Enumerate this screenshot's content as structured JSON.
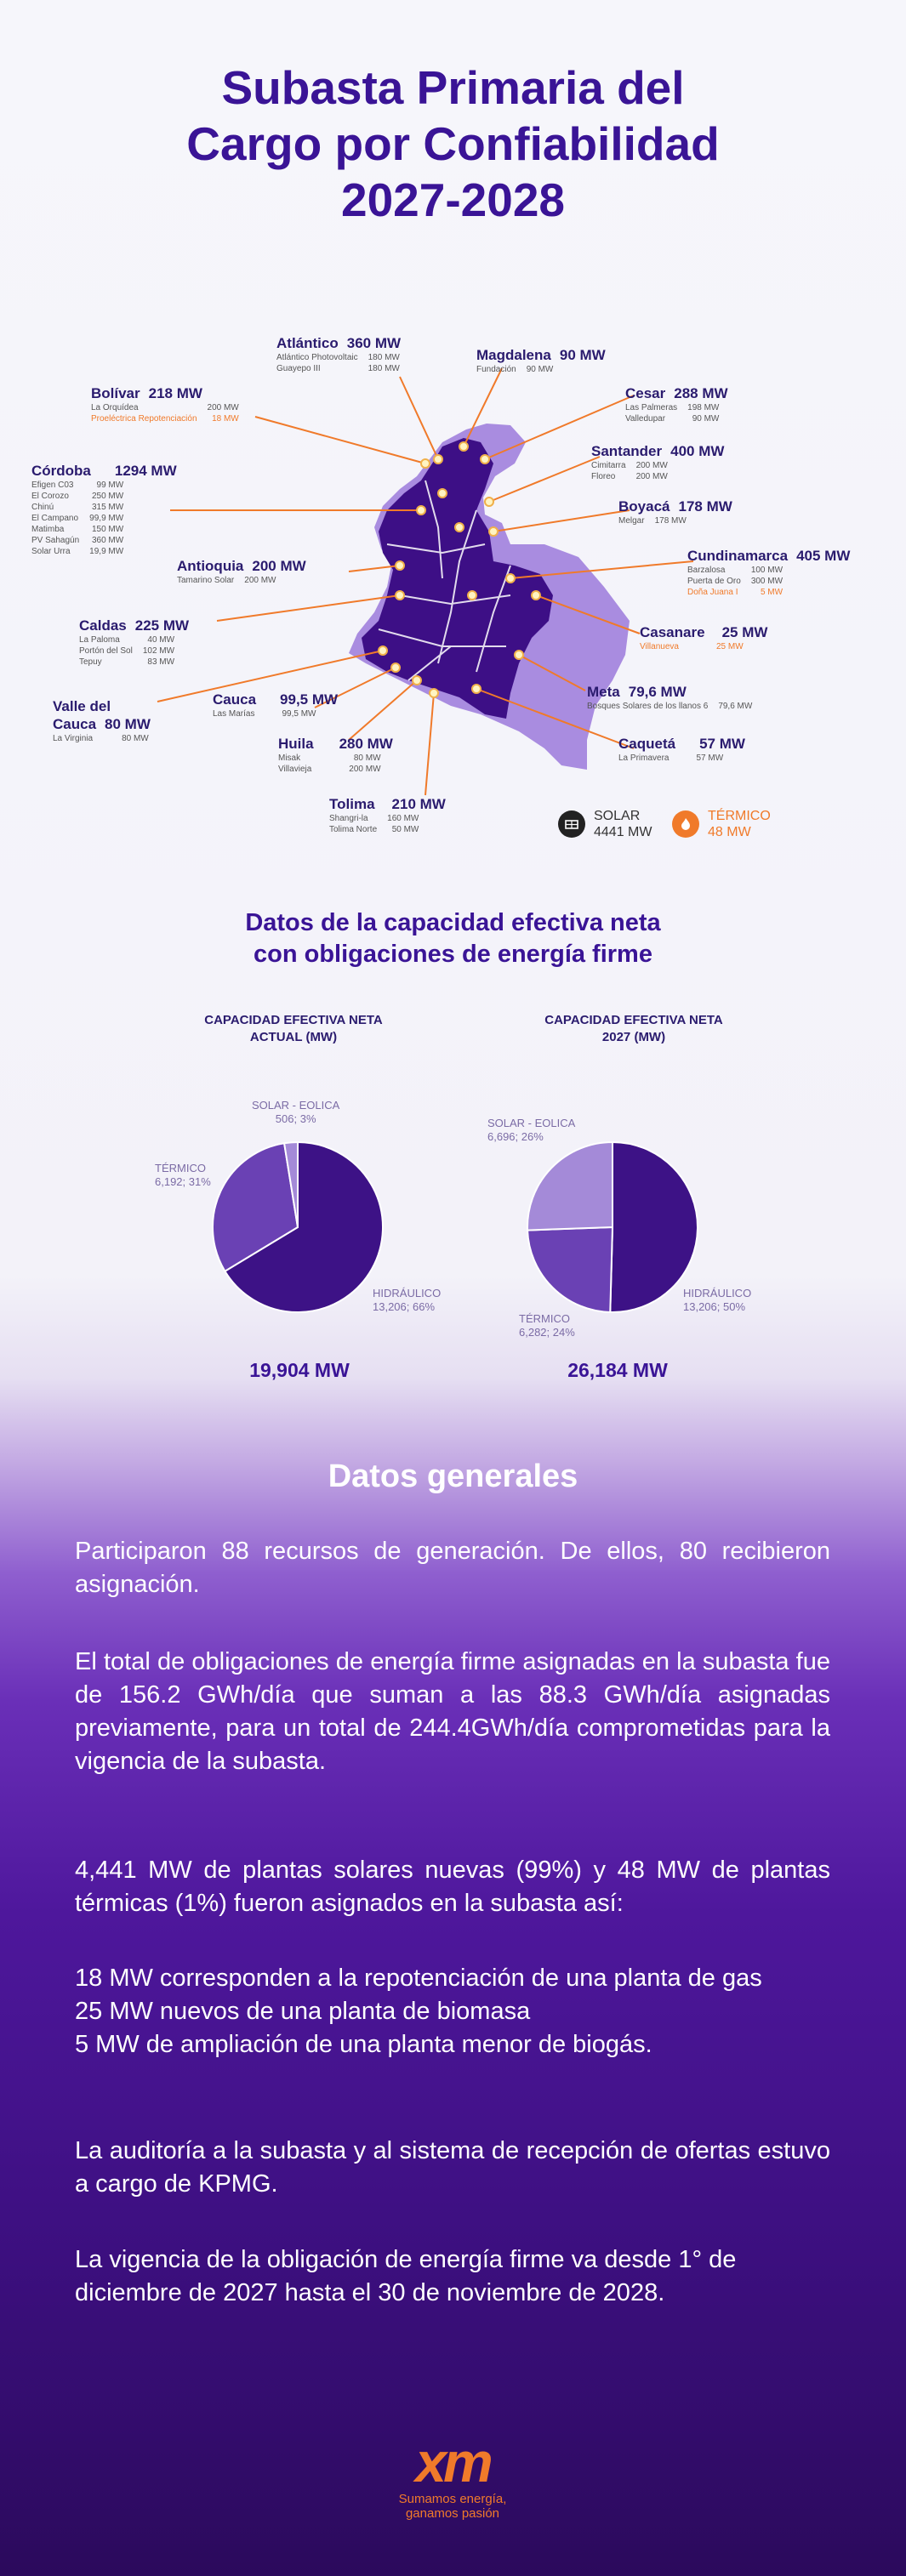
{
  "title": {
    "line1": "Subasta Primaria del",
    "line2": "Cargo por Confiabilidad",
    "line3": "2027-2028"
  },
  "regions": {
    "atlantico": {
      "name": "Atlántico",
      "mw": "360 MW",
      "items": [
        {
          "n": "Atlántico Photovoltaic",
          "v": "180 MW"
        },
        {
          "n": "Guayepo III",
          "v": "180 MW"
        }
      ]
    },
    "magdalena": {
      "name": "Magdalena",
      "mw": "90 MW",
      "items": [
        {
          "n": "Fundación",
          "v": "90 MW"
        }
      ]
    },
    "bolivar": {
      "name": "Bolívar",
      "mw": "218 MW",
      "items": [
        {
          "n": "La Orquídea",
          "v": "200 MW"
        },
        {
          "n": "Proeléctrica Repotenciación",
          "v": "18 MW"
        }
      ]
    },
    "cesar": {
      "name": "Cesar",
      "mw": "288 MW",
      "items": [
        {
          "n": "Las Palmeras",
          "v": "198 MW"
        },
        {
          "n": "Valledupar",
          "v": "90 MW"
        }
      ]
    },
    "cordoba": {
      "name": "Córdoba",
      "mw": "1294 MW",
      "items": [
        {
          "n": "Efigen C03",
          "v": "99 MW"
        },
        {
          "n": "El Corozo",
          "v": "250 MW"
        },
        {
          "n": "Chinú",
          "v": "315 MW"
        },
        {
          "n": "El Campano",
          "v": "99,9 MW"
        },
        {
          "n": "Matimba",
          "v": "150 MW"
        },
        {
          "n": "PV Sahagún",
          "v": "360 MW"
        },
        {
          "n": "Solar Urra",
          "v": "19,9 MW"
        }
      ]
    },
    "santander": {
      "name": "Santander",
      "mw": "400 MW",
      "items": [
        {
          "n": "Cimitarra",
          "v": "200 MW"
        },
        {
          "n": "Floreo",
          "v": "200 MW"
        }
      ]
    },
    "boyaca": {
      "name": "Boyacá",
      "mw": "178 MW",
      "items": [
        {
          "n": "Melgar",
          "v": "178 MW"
        }
      ]
    },
    "antioquia": {
      "name": "Antioquia",
      "mw": "200 MW",
      "items": [
        {
          "n": "Tamarino Solar",
          "v": "200 MW"
        }
      ]
    },
    "cundinamarca": {
      "name": "Cundinamarca",
      "mw": "405 MW",
      "items": [
        {
          "n": "Barzalosa",
          "v": "100 MW"
        },
        {
          "n": "Puerta de Oro",
          "v": "300 MW"
        },
        {
          "n": "Doña Juana I",
          "v": "5 MW"
        }
      ]
    },
    "caldas": {
      "name": "Caldas",
      "mw": "225 MW",
      "items": [
        {
          "n": "La Paloma",
          "v": "40 MW"
        },
        {
          "n": "Portón del Sol",
          "v": "102 MW"
        },
        {
          "n": "Tepuy",
          "v": "83 MW"
        }
      ]
    },
    "casanare": {
      "name": "Casanare",
      "mw": "25 MW",
      "items": [
        {
          "n": "Villanueva",
          "v": "25 MW"
        }
      ]
    },
    "meta": {
      "name": "Meta",
      "mw": "79,6 MW",
      "items": [
        {
          "n": "Bosques Solares de los llanos 6",
          "v": "79,6 MW"
        }
      ]
    },
    "valle": {
      "name1": "Valle del",
      "name2": "Cauca",
      "mw": "80 MW",
      "items": [
        {
          "n": "La Virginia",
          "v": "80 MW"
        }
      ]
    },
    "cauca": {
      "name": "Cauca",
      "mw": "99,5 MW",
      "items": [
        {
          "n": "Las Marías",
          "v": "99,5 MW"
        }
      ]
    },
    "huila": {
      "name": "Huila",
      "mw": "280 MW",
      "items": [
        {
          "n": "Misak",
          "v": "80 MW"
        },
        {
          "n": "Villavieja",
          "v": "200 MW"
        }
      ]
    },
    "caqueta": {
      "name": "Caquetá",
      "mw": "57 MW",
      "items": [
        {
          "n": "La Primavera",
          "v": "57 MW"
        }
      ]
    },
    "tolima": {
      "name": "Tolima",
      "mw": "210 MW",
      "items": [
        {
          "n": "Shangri-la",
          "v": "160 MW"
        },
        {
          "n": "Tolima Norte",
          "v": "50 MW"
        }
      ]
    }
  },
  "legend": {
    "solar_label": "SOLAR",
    "solar_mw": "4441 MW",
    "solar_icon": "solar-panel-icon",
    "termico_label": "TÉRMICO",
    "termico_mw": "48 MW",
    "termico_icon": "flame-icon"
  },
  "charts_section": {
    "title_line1": "Datos de la capacidad efectiva neta",
    "title_line2": "con obligaciones de energía firme"
  },
  "chart_data": [
    {
      "type": "pie",
      "title": "CAPACIDAD EFECTIVA NETA ACTUAL (MW)",
      "title_line1": "CAPACIDAD EFECTIVA NETA",
      "title_line2": "ACTUAL (MW)",
      "total": "19,904 MW",
      "slices": [
        {
          "name": "HIDRÁULICO",
          "value": 13206,
          "label": "13,206; 66%",
          "color": "#3d1286"
        },
        {
          "name": "TÉRMICO",
          "value": 6192,
          "label": "6,192; 31%",
          "color": "#6a41b4"
        },
        {
          "name": "SOLAR - EOLICA",
          "value": 506,
          "label": "506; 3%",
          "color": "#a48ad8"
        }
      ]
    },
    {
      "type": "pie",
      "title": "CAPACIDAD EFECTIVA NETA 2027 (MW)",
      "title_line1": "CAPACIDAD EFECTIVA NETA",
      "title_line2": "2027 (MW)",
      "total": "26,184 MW",
      "slices": [
        {
          "name": "HIDRÁULICO",
          "value": 13206,
          "label": "13,206; 50%",
          "color": "#3d1286"
        },
        {
          "name": "TÉRMICO",
          "value": 6282,
          "label": "6,282; 24%",
          "color": "#6a41b4"
        },
        {
          "name": "SOLAR - EOLICA",
          "value": 6696,
          "label": "6,696; 26%",
          "color": "#a48ad8"
        }
      ]
    }
  ],
  "general": {
    "title": "Datos generales",
    "p1": "Participaron 88 recursos de generación. De ellos, 80 recibieron asignación.",
    "p2": "El total de obligaciones de energía firme asignadas en la subasta fue de 156.2 GWh/día que suman a las 88.3 GWh/día asignadas previamente, para un total de 244.4GWh/día comprometidas para la vigencia de la subasta.",
    "p3": "4,441 MW de plantas solares nuevas (99%) y 48 MW de plantas térmicas (1%) fueron asignados en la subasta así:",
    "p4a": "18 MW corresponden a la repotenciación de una planta de gas",
    "p4b": "25 MW nuevos de una planta de biomasa",
    "p4c": "5 MW de ampliación de una planta menor de biogás.",
    "p5": "La auditoría a la subasta y al sistema de recepción de ofertas estuvo a cargo de KPMG.",
    "p6": "La vigencia de la obligación de energía firme va desde 1° de diciembre de 2027 hasta el 30 de noviembre de 2028."
  },
  "logo": {
    "text": "xm",
    "slogan1": "Sumamos energía,",
    "slogan2": "ganamos pasión",
    "color": "#f07a2a"
  }
}
